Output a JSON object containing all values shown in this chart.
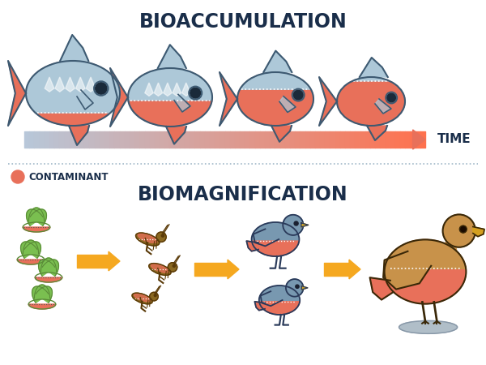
{
  "title_bio": "BIOACCUMULATION",
  "title_mag": "BIOMAGNIFICATION",
  "time_label": "TIME",
  "contaminant_label": "CONTAMINANT",
  "bg_color": "#ffffff",
  "title_color": "#1a2e4a",
  "fish_outline": "#3d5a72",
  "fish_blue": "#adc8d8",
  "fish_red": "#e8705a",
  "fish_scale_color": "#c8dce8",
  "arrow_blue": "#b8ccd8",
  "arrow_red": "#e8705a",
  "yellow_arrow": "#f5a820",
  "dot_color": "#e8705a",
  "divider_color": "#a0b8c8",
  "plant_green": "#7abf50",
  "plant_dark": "#5a8a38",
  "plant_red": "#e8705a",
  "gh_brown": "#8a6820",
  "gh_dark": "#5a3a08",
  "gh_red": "#e8705a",
  "bird_blue": "#7898b0",
  "bird_red": "#e8705a",
  "bird_outline": "#2a3a5a",
  "eagle_tan": "#c8924a",
  "eagle_red": "#e8705a",
  "eagle_outline": "#3a2808",
  "rock_color": "#b0bec8"
}
